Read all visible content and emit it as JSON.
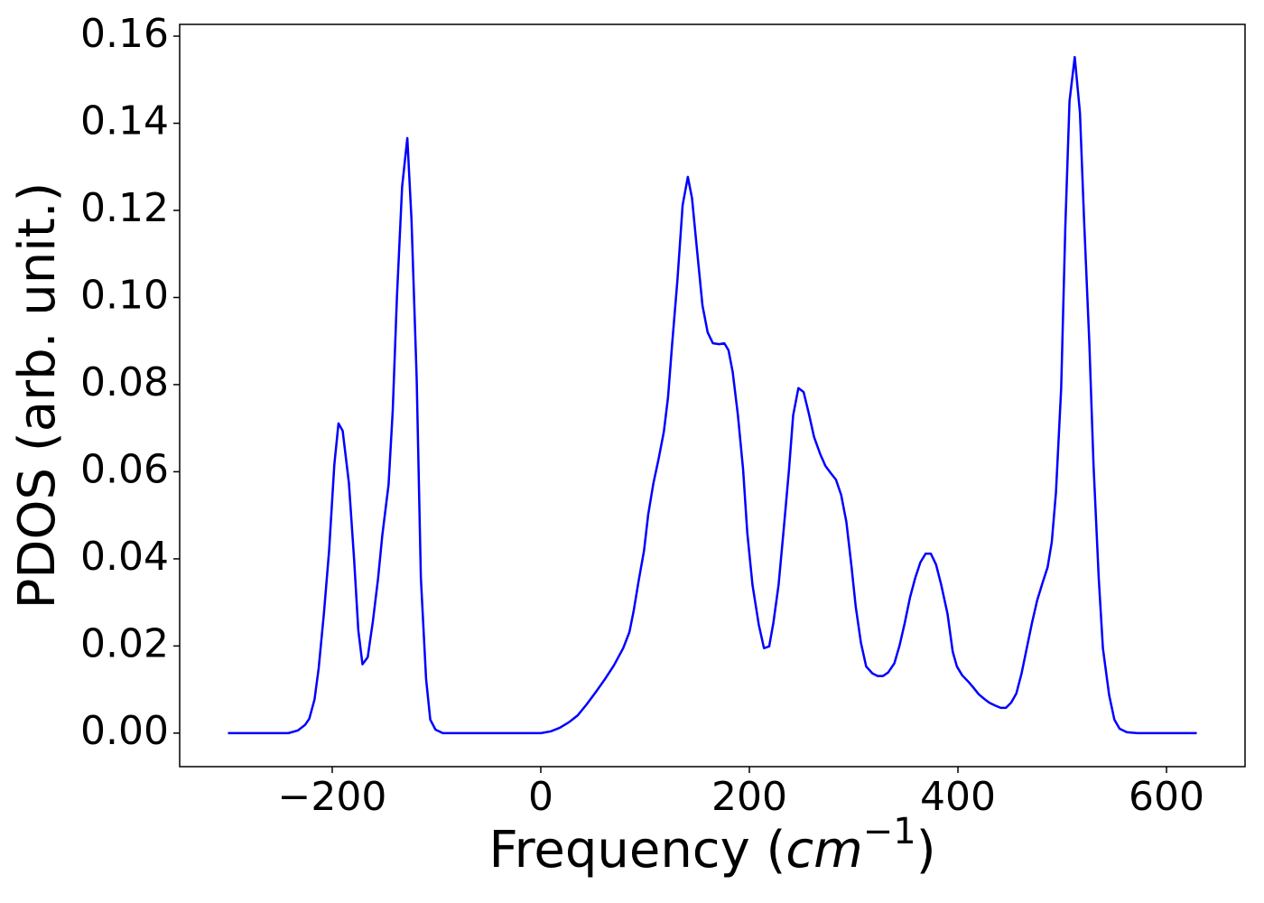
{
  "chart_data": {
    "type": "line",
    "ylabel": "PDOS (arb. unit.)",
    "xlabel_parts": [
      "Frequency (",
      "cm",
      "−1",
      ")"
    ],
    "xlim": [
      -346.3,
      675.3
    ],
    "ylim": [
      -0.0077,
      0.1627
    ],
    "xticks": [
      {
        "value": -200,
        "label": "−200"
      },
      0,
      200,
      400,
      600
    ],
    "yticks": [
      {
        "value": 0,
        "label": "0.00"
      },
      {
        "value": 0.02,
        "label": "0.02"
      },
      {
        "value": 0.04,
        "label": "0.04"
      },
      {
        "value": 0.06,
        "label": "0.06"
      },
      {
        "value": 0.08,
        "label": "0.08"
      },
      {
        "value": 0.1,
        "label": "0.10"
      },
      {
        "value": 0.12,
        "label": "0.12"
      },
      {
        "value": 0.14,
        "label": "0.14"
      },
      {
        "value": 0.16,
        "label": "0.16"
      }
    ],
    "x": [
      -300,
      -242,
      -233,
      -226,
      -222,
      -217,
      -213,
      -208,
      -203,
      -198,
      -194,
      -190,
      -184,
      -179,
      -175,
      -171,
      -166,
      -161,
      -156,
      -152,
      -146,
      -142,
      -138,
      -133,
      -128,
      -124,
      -119,
      -115,
      -110,
      -106,
      -101,
      -94,
      0,
      9.5,
      18,
      27,
      35.5,
      44,
      53,
      61.5,
      70,
      79,
      85,
      89,
      94,
      99,
      103,
      108,
      113,
      118,
      122,
      126,
      131,
      136,
      141,
      145,
      150,
      155,
      160,
      165,
      171,
      176,
      180,
      184,
      189,
      194,
      198,
      203,
      209,
      214,
      219,
      223,
      228,
      233,
      238,
      242,
      247,
      252,
      257,
      262,
      268,
      273,
      278,
      283,
      288,
      293,
      298,
      302,
      307,
      312,
      318,
      323,
      328,
      333,
      339,
      344,
      349,
      354,
      359,
      364,
      369,
      374,
      379,
      384,
      390,
      395,
      399,
      404,
      410,
      415,
      420,
      425,
      430,
      435,
      441,
      446,
      451,
      456,
      461,
      466,
      471,
      476,
      481,
      486,
      490,
      494,
      499,
      503,
      507,
      512,
      517,
      521,
      526,
      530,
      535,
      539,
      545,
      550,
      555,
      562,
      572,
      629
    ],
    "series": [
      {
        "color": "#0000ff",
        "values": [
          0,
          0,
          0.0006,
          0.0019,
          0.0033,
          0.0077,
          0.0149,
          0.0274,
          0.0419,
          0.0616,
          0.0711,
          0.0694,
          0.0574,
          0.0398,
          0.0236,
          0.0158,
          0.0174,
          0.0257,
          0.0356,
          0.0454,
          0.057,
          0.074,
          0.0999,
          0.1254,
          0.1366,
          0.1179,
          0.0812,
          0.0356,
          0.0124,
          0.0031,
          0.0008,
          0,
          0,
          0.0004,
          0.0012,
          0.0025,
          0.0041,
          0.0066,
          0.0095,
          0.0124,
          0.0155,
          0.0195,
          0.0232,
          0.028,
          0.0352,
          0.0419,
          0.0502,
          0.0574,
          0.063,
          0.0692,
          0.0771,
          0.0895,
          0.104,
          0.1212,
          0.1277,
          0.1228,
          0.1104,
          0.0982,
          0.092,
          0.0895,
          0.0893,
          0.0895,
          0.0879,
          0.0829,
          0.073,
          0.0605,
          0.046,
          0.034,
          0.0249,
          0.0195,
          0.0199,
          0.0253,
          0.034,
          0.047,
          0.0605,
          0.073,
          0.0792,
          0.0783,
          0.0734,
          0.068,
          0.064,
          0.0613,
          0.0597,
          0.0582,
          0.0547,
          0.0485,
          0.0381,
          0.029,
          0.0207,
          0.0153,
          0.0137,
          0.0131,
          0.0131,
          0.0139,
          0.016,
          0.0201,
          0.0253,
          0.0311,
          0.0356,
          0.0392,
          0.0412,
          0.0412,
          0.0387,
          0.034,
          0.0274,
          0.0187,
          0.0153,
          0.0133,
          0.0118,
          0.0104,
          0.0089,
          0.0079,
          0.007,
          0.0064,
          0.0058,
          0.0058,
          0.007,
          0.0091,
          0.0137,
          0.0195,
          0.0253,
          0.0305,
          0.0344,
          0.0381,
          0.0439,
          0.0553,
          0.0792,
          0.1165,
          0.1451,
          0.1552,
          0.1424,
          0.1175,
          0.0895,
          0.0616,
          0.0356,
          0.0195,
          0.0087,
          0.0031,
          0.001,
          0.0002,
          0,
          0
        ]
      }
    ]
  }
}
